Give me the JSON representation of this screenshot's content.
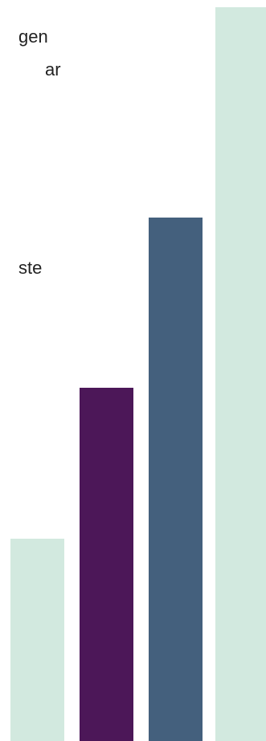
{
  "text_fragments": {
    "line1": "gen",
    "line2": "ar",
    "line3": "ste"
  },
  "colors": {
    "mint": "#d2e9df",
    "purple": "#4c1758",
    "slate": "#44607d"
  },
  "chart_data": {
    "type": "bar",
    "categories": [
      "",
      "",
      "",
      ""
    ],
    "values": [
      252,
      440,
      652,
      914
    ],
    "bar_colors": [
      "#d2e9df",
      "#4c1758",
      "#44607d",
      "#d2e9df"
    ],
    "title": "",
    "xlabel": "",
    "ylabel": "",
    "ylim": [
      0,
      914
    ],
    "grid": false,
    "legend": "none"
  }
}
